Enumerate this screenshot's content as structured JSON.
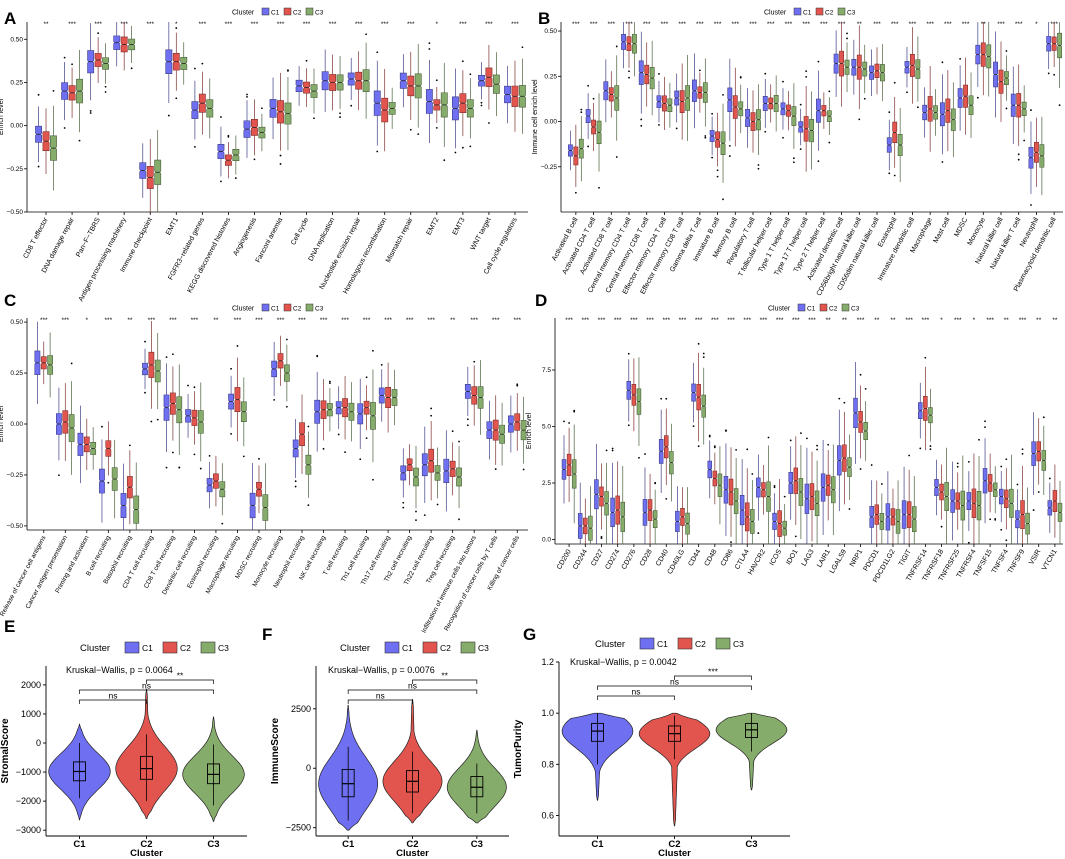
{
  "colors": {
    "C1": "#6f6ff2",
    "C2": "#e2554f",
    "C3": "#86ac6b"
  },
  "legend": {
    "title": "Cluster",
    "items": [
      "C1",
      "C2",
      "C3"
    ]
  },
  "chart_data": [
    {
      "panel": "A",
      "type": "box",
      "ylabel": "Enrich level",
      "ylim": [
        -0.5,
        0.6
      ],
      "yticks": [
        -0.5,
        -0.25,
        0,
        0.25,
        0.5
      ],
      "ytick_labels": [
        "−0.50",
        "−0.25",
        "0.00",
        "0.25",
        "0.50"
      ],
      "legend_title": "Cluster",
      "legend_items": [
        "C1",
        "C2",
        "C3"
      ],
      "categories": [
        "CD8 T effector",
        "DNA damage repair",
        "Pan−F−TBRS",
        "Antigen processing machinery",
        "Immune checkpoint",
        "EMT1",
        "FGFR3−related genes",
        "KEGG discovered histones",
        "Angiogenesis",
        "Fanconi anemia",
        "Cell cycle",
        "DNA replication",
        "Nucleotide excision repair",
        "Homologous recombination",
        "Mismatch repair",
        "EMT2",
        "EMT3",
        "WNT target",
        "Cell cycle regulators"
      ],
      "significance": [
        "**",
        "***",
        "***",
        "***",
        "***",
        "*",
        "***",
        "***",
        "***",
        "***",
        "***",
        "***",
        "***",
        "***",
        "***",
        "*",
        "***",
        "***",
        "***"
      ],
      "medians": [
        [
          -0.05,
          -0.09,
          -0.13
        ],
        [
          0.2,
          0.19,
          0.2
        ],
        [
          0.37,
          0.38,
          0.36
        ],
        [
          0.48,
          0.47,
          0.47
        ],
        [
          -0.26,
          -0.3,
          -0.27
        ],
        [
          0.37,
          0.37,
          0.36
        ],
        [
          0.09,
          0.13,
          0.1
        ],
        [
          -0.15,
          -0.2,
          -0.17
        ],
        [
          -0.02,
          -0.01,
          -0.04
        ],
        [
          0.1,
          0.08,
          0.07
        ],
        [
          0.23,
          0.22,
          0.2
        ],
        [
          0.26,
          0.25,
          0.25
        ],
        [
          0.27,
          0.26,
          0.26
        ],
        [
          0.13,
          0.09,
          0.1
        ],
        [
          0.26,
          0.23,
          0.23
        ],
        [
          0.14,
          0.12,
          0.12
        ],
        [
          0.1,
          0.13,
          0.1
        ],
        [
          0.26,
          0.28,
          0.24
        ],
        [
          0.18,
          0.17,
          0.17
        ]
      ]
    },
    {
      "panel": "B",
      "type": "box",
      "ylabel": "Immune cell enrich level",
      "ylim": [
        -0.5,
        0.55
      ],
      "yticks": [
        -0.25,
        0,
        0.25,
        0.5
      ],
      "ytick_labels": [
        "−0.25",
        "0.00",
        "0.25",
        "0.50"
      ],
      "legend_title": "Cluster",
      "legend_items": [
        "C1",
        "C2",
        "C3"
      ],
      "categories": [
        "Activated B cell",
        "Activated CD4 T cell",
        "Activated CD8 T cell",
        "Central memory CD4 T cell",
        "Central memory CD8 T cell",
        "Effector memory CD4 T cell",
        "Effector memory CD8 T cell",
        "Gamma delta T cell",
        "Immature B cell",
        "Memory B cell",
        "Regulatory T cell",
        "T follicular helper cell",
        "Type 1 T helper cell",
        "Type 17 T helper cell",
        "Type 2 T helper cell",
        "Activated dendritic cell",
        "CD56bright natural killer cell",
        "CD56dim natural killer cell",
        "Eosinophil",
        "Immature dendritic cell",
        "Macrophage",
        "Mast cell",
        "MDSC",
        "Monocyte",
        "Natural killer cell",
        "Natural killer T cell",
        "Neutrophil",
        "Plasmacytoid dendritic cell"
      ],
      "significance": [
        "***",
        "***",
        "***",
        "***",
        "***",
        "***",
        "***",
        "***",
        "***",
        "***",
        "***",
        "***",
        "***",
        "***",
        "***",
        "***",
        "**",
        "***",
        "***",
        "***",
        "***",
        "***",
        "***",
        "**",
        "***",
        "***",
        "*",
        "***"
      ],
      "medians": [
        [
          -0.16,
          -0.19,
          -0.15
        ],
        [
          0.03,
          -0.03,
          -0.06
        ],
        [
          0.17,
          0.15,
          0.13
        ],
        [
          0.44,
          0.43,
          0.43
        ],
        [
          0.27,
          0.26,
          0.24
        ],
        [
          0.11,
          0.1,
          0.09
        ],
        [
          0.13,
          0.11,
          0.13
        ],
        [
          0.17,
          0.16,
          0.16
        ],
        [
          -0.08,
          -0.1,
          -0.12
        ],
        [
          0.12,
          0.08,
          0.07
        ],
        [
          0.02,
          0.0,
          0.01
        ],
        [
          0.1,
          0.1,
          0.1
        ],
        [
          0.07,
          0.06,
          0.03
        ],
        [
          -0.03,
          -0.04,
          -0.05
        ],
        [
          0.06,
          0.06,
          0.03
        ],
        [
          0.32,
          0.32,
          0.3
        ],
        [
          0.3,
          0.3,
          0.29
        ],
        [
          0.27,
          0.28,
          0.27
        ],
        [
          -0.13,
          -0.06,
          -0.13
        ],
        [
          0.3,
          0.31,
          0.29
        ],
        [
          0.05,
          0.07,
          0.05
        ],
        [
          0.04,
          0.06,
          0.01
        ],
        [
          0.13,
          0.14,
          0.09
        ],
        [
          0.37,
          0.37,
          0.36
        ],
        [
          0.26,
          0.22,
          0.24
        ],
        [
          0.09,
          0.09,
          0.07
        ],
        [
          -0.2,
          -0.17,
          -0.19
        ],
        [
          0.43,
          0.43,
          0.42
        ]
      ]
    },
    {
      "panel": "C",
      "type": "box",
      "ylabel": "Enrich level",
      "ylim": [
        -0.52,
        0.52
      ],
      "yticks": [
        -0.5,
        -0.25,
        0,
        0.25,
        0.5
      ],
      "ytick_labels": [
        "−0.50",
        "−0.25",
        "0.00",
        "0.25",
        "0.50"
      ],
      "legend_title": "Cluster",
      "legend_items": [
        "C1",
        "C2",
        "C3"
      ],
      "categories": [
        "Release of cancer cell antigens",
        "Cancer antigen presentation",
        "Priming and activation",
        "B cell recruiting",
        "Basophil recruiting",
        "CD4 T cell recruiting",
        "CD8 T cell recruiting",
        "Dendritic cell recruiting",
        "Eosinophil recruiting",
        "Macrophage recruiting",
        "MDSC recruiting",
        "Monocyte recruiting",
        "Neutrophil recruiting",
        "NK cell recruiting",
        "T cell recruiting",
        "Th1 cell recruiting",
        "Th17 cell recruiting",
        "Th2 cell recruiting",
        "Th22 cell recruiting",
        "Treg cell recruiting",
        "Infiltration of immune cells into tumors",
        "Recognition of cancer cells by T cells",
        "Killing of cancer cells"
      ],
      "significance": [
        "***",
        "***",
        "*",
        "***",
        "**",
        "***",
        "***",
        "***",
        "**",
        "***",
        "***",
        "***",
        "***",
        "***",
        "***",
        "***",
        "***",
        "***",
        "***",
        "**",
        "***",
        "***",
        "***"
      ],
      "medians": [
        [
          0.3,
          0.3,
          0.29
        ],
        [
          0.0,
          0.01,
          -0.02
        ],
        [
          -0.1,
          -0.1,
          -0.12
        ],
        [
          -0.28,
          -0.12,
          -0.27
        ],
        [
          -0.4,
          -0.31,
          -0.42
        ],
        [
          0.27,
          0.29,
          0.26
        ],
        [
          0.08,
          0.1,
          0.07
        ],
        [
          0.04,
          0.03,
          0.01
        ],
        [
          -0.3,
          -0.28,
          -0.32
        ],
        [
          0.11,
          0.12,
          0.06
        ],
        [
          -0.4,
          -0.32,
          -0.41
        ],
        [
          0.27,
          0.31,
          0.25
        ],
        [
          -0.12,
          -0.05,
          -0.2
        ],
        [
          0.06,
          0.07,
          0.07
        ],
        [
          0.08,
          0.08,
          0.06
        ],
        [
          0.05,
          0.08,
          0.04
        ],
        [
          0.14,
          0.13,
          0.13
        ],
        [
          -0.24,
          -0.2,
          -0.26
        ],
        [
          -0.2,
          -0.18,
          -0.24
        ],
        [
          -0.23,
          -0.22,
          -0.26
        ],
        [
          0.16,
          0.14,
          0.13
        ],
        [
          -0.03,
          -0.03,
          -0.05
        ],
        [
          0.0,
          0.01,
          -0.03
        ]
      ]
    },
    {
      "panel": "D",
      "type": "box",
      "ylabel": "Enrich level",
      "ylim": [
        -0.2,
        9.8
      ],
      "yticks": [
        0,
        2.5,
        5,
        7.5
      ],
      "ytick_labels": [
        "0.0",
        "2.5",
        "5.0",
        "7.5"
      ],
      "legend_title": "Cluster",
      "legend_items": [
        "C1",
        "C2",
        "C3"
      ],
      "categories": [
        "CD200",
        "CD244",
        "CD27",
        "CD274",
        "CD276",
        "CD28",
        "CD40",
        "CD40LG",
        "CD44",
        "CD48",
        "CD86",
        "CTLA4",
        "HAVCR2",
        "ICOS",
        "IDO1",
        "LAG3",
        "LAIR1",
        "LGALS9",
        "NRP1",
        "PDCD1",
        "PDCD1LG2",
        "TIGIT",
        "TNFRSF14",
        "TNFRSF18",
        "TNFRSF25",
        "TNFRSF4",
        "TNFSF15",
        "TNFSF4",
        "TNFSF9",
        "VSIR",
        "VTCN1"
      ],
      "significance": [
        "***",
        "***",
        "***",
        "***",
        "***",
        "***",
        "***",
        "***",
        "***",
        "***",
        "***",
        "***",
        "***",
        "***",
        "***",
        "***",
        "**",
        "**",
        "***",
        "**",
        "**",
        "***",
        "***",
        "*",
        "***",
        "*",
        "***",
        "**",
        "***",
        "**",
        "**"
      ],
      "medians": [
        [
          3.1,
          3.3,
          2.9
        ],
        [
          0.6,
          0.6,
          0.5
        ],
        [
          2.0,
          1.9,
          1.6
        ],
        [
          1.2,
          1.3,
          1.0
        ],
        [
          6.6,
          6.4,
          6.1
        ],
        [
          1.2,
          1.3,
          0.9
        ],
        [
          3.9,
          4.1,
          3.4
        ],
        [
          0.8,
          1.0,
          0.7
        ],
        [
          6.5,
          6.3,
          5.9
        ],
        [
          3.1,
          2.7,
          2.4
        ],
        [
          2.2,
          2.1,
          1.7
        ],
        [
          1.3,
          1.0,
          0.8
        ],
        [
          2.3,
          2.2,
          1.9
        ],
        [
          0.8,
          0.7,
          0.5
        ],
        [
          2.5,
          2.6,
          2.1
        ],
        [
          1.8,
          1.9,
          1.6
        ],
        [
          2.3,
          2.4,
          2.2
        ],
        [
          3.5,
          3.6,
          3.2
        ],
        [
          5.6,
          5.2,
          4.8
        ],
        [
          1.0,
          1.1,
          0.8
        ],
        [
          1.0,
          1.0,
          0.8
        ],
        [
          1.1,
          1.1,
          0.9
        ],
        [
          5.7,
          5.8,
          5.5
        ],
        [
          2.3,
          2.1,
          1.9
        ],
        [
          1.7,
          1.7,
          1.5
        ],
        [
          1.7,
          1.6,
          1.5
        ],
        [
          2.6,
          2.5,
          2.2
        ],
        [
          1.9,
          1.8,
          1.6
        ],
        [
          0.9,
          1.1,
          0.7
        ],
        [
          3.8,
          3.9,
          3.5
        ],
        [
          1.4,
          1.7,
          1.2
        ]
      ]
    },
    {
      "panel": "E",
      "type": "violin",
      "ylabel": "StromalScore",
      "xlabel": "Cluster",
      "categories": [
        "C1",
        "C2",
        "C3"
      ],
      "legend_title": "Cluster",
      "ylim": [
        -3200,
        2650
      ],
      "yticks": [
        -3000,
        -2000,
        -1000,
        0,
        1000,
        2000
      ],
      "ytick_labels": [
        "−3000",
        "−2000",
        "−1000",
        "0",
        "1000",
        "2000"
      ],
      "test": "Kruskal−Wallis, p = 0.0064",
      "comparisons": [
        {
          "pair": [
            "C1",
            "C2"
          ],
          "label": "ns"
        },
        {
          "pair": [
            "C1",
            "C3"
          ],
          "label": "ns"
        },
        {
          "pair": [
            "C2",
            "C3"
          ],
          "label": "**"
        }
      ],
      "violins": [
        {
          "cluster": "C1",
          "median": -980,
          "q1": -1300,
          "q3": -650,
          "wlo": -1900,
          "whi": 0,
          "ymin": -2650,
          "ymax": 650
        },
        {
          "cluster": "C2",
          "median": -880,
          "q1": -1250,
          "q3": -460,
          "wlo": -2000,
          "whi": 300,
          "ymin": -2600,
          "ymax": 1850
        },
        {
          "cluster": "C3",
          "median": -1080,
          "q1": -1400,
          "q3": -720,
          "wlo": -2150,
          "whi": -50,
          "ymin": -2700,
          "ymax": 900
        }
      ]
    },
    {
      "panel": "F",
      "type": "violin",
      "ylabel": "ImmuneScore",
      "xlabel": "Cluster",
      "categories": [
        "C1",
        "C2",
        "C3"
      ],
      "legend_title": "Cluster",
      "ylim": [
        -2850,
        4300
      ],
      "yticks": [
        -2500,
        0,
        2500
      ],
      "ytick_labels": [
        "−2500",
        "0",
        "2500"
      ],
      "test": "Kruskal−Wallis, p = 0.0076",
      "comparisons": [
        {
          "pair": [
            "C1",
            "C2"
          ],
          "label": "ns"
        },
        {
          "pair": [
            "C1",
            "C3"
          ],
          "label": "ns"
        },
        {
          "pair": [
            "C2",
            "C3"
          ],
          "label": "**"
        }
      ],
      "violins": [
        {
          "cluster": "C1",
          "median": -650,
          "q1": -1200,
          "q3": -50,
          "wlo": -2200,
          "whi": 900,
          "ymin": -2600,
          "ymax": 2650
        },
        {
          "cluster": "C2",
          "median": -550,
          "q1": -1000,
          "q3": -100,
          "wlo": -1900,
          "whi": 700,
          "ymin": -2300,
          "ymax": 2900
        },
        {
          "cluster": "C3",
          "median": -800,
          "q1": -1200,
          "q3": -350,
          "wlo": -1900,
          "whi": 200,
          "ymin": -2300,
          "ymax": 1600
        }
      ]
    },
    {
      "panel": "G",
      "type": "violin",
      "ylabel": "TumorPurity",
      "xlabel": "Cluster",
      "categories": [
        "C1",
        "C2",
        "C3"
      ],
      "legend_title": "Cluster",
      "ylim": [
        0.52,
        1.2
      ],
      "yticks": [
        0.6,
        0.8,
        1.0,
        1.2
      ],
      "ytick_labels": [
        "0.6",
        "0.8",
        "1.0",
        "1.2"
      ],
      "test": "Kruskal−Wallis, p = 0.0042",
      "comparisons": [
        {
          "pair": [
            "C1",
            "C2"
          ],
          "label": "ns"
        },
        {
          "pair": [
            "C1",
            "C3"
          ],
          "label": "ns"
        },
        {
          "pair": [
            "C2",
            "C3"
          ],
          "label": "***"
        }
      ],
      "violins": [
        {
          "cluster": "C1",
          "median": 0.93,
          "q1": 0.89,
          "q3": 0.96,
          "wlo": 0.8,
          "whi": 1.0,
          "ymin": 0.66,
          "ymax": 1.0
        },
        {
          "cluster": "C2",
          "median": 0.92,
          "q1": 0.89,
          "q3": 0.95,
          "wlo": 0.82,
          "whi": 0.99,
          "ymin": 0.56,
          "ymax": 1.0
        },
        {
          "cluster": "C3",
          "median": 0.935,
          "q1": 0.905,
          "q3": 0.96,
          "wlo": 0.85,
          "whi": 1.0,
          "ymin": 0.7,
          "ymax": 1.0
        }
      ]
    }
  ]
}
